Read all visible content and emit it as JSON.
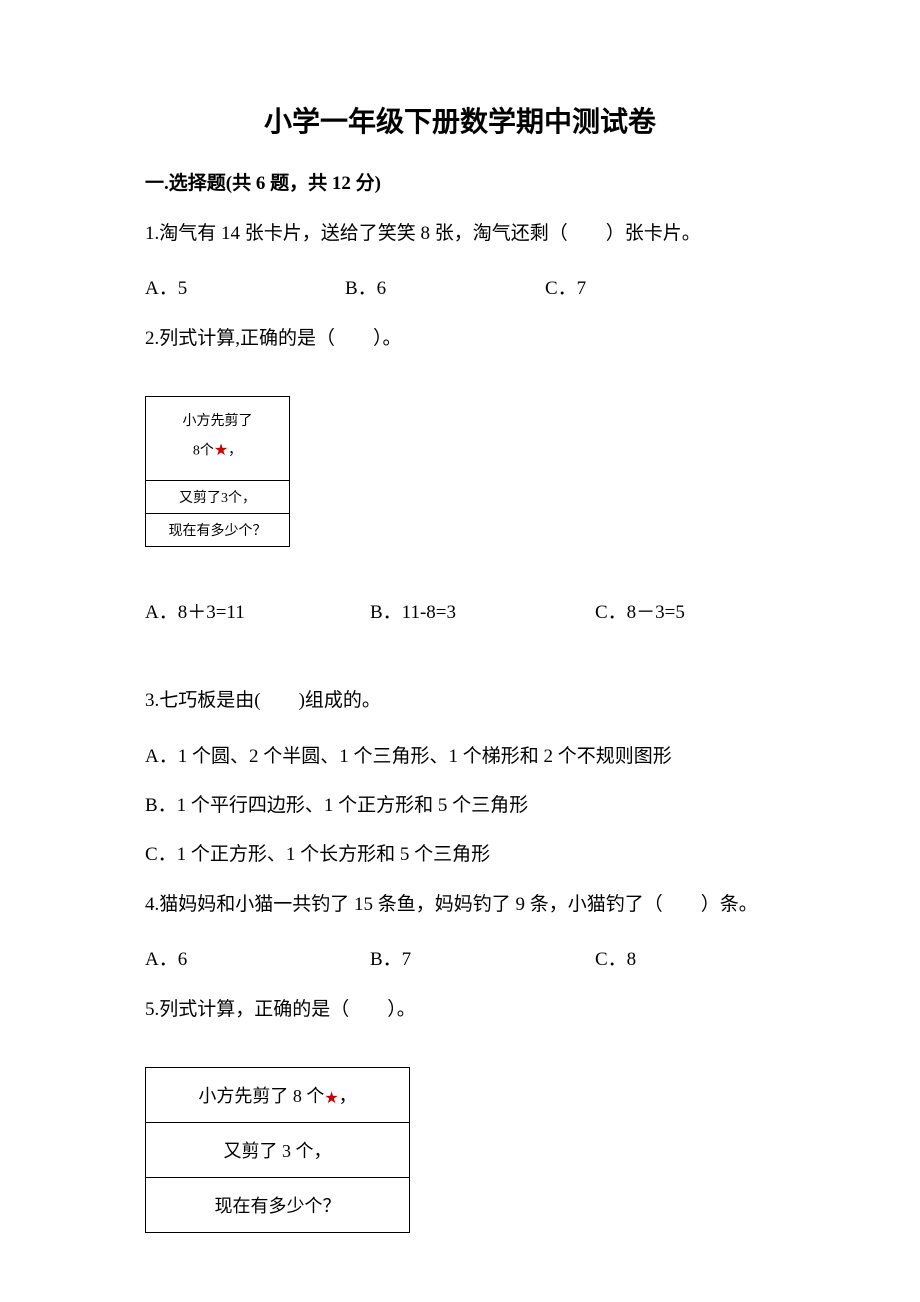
{
  "title": "小学一年级下册数学期中测试卷",
  "section1": {
    "header": "一.选择题(共 6 题，共 12 分)"
  },
  "q1": {
    "text": "1.淘气有 14 张卡片，送给了笑笑 8 张，淘气还剩（　　）张卡片。",
    "a": "A．5",
    "b": "B．6",
    "c": "C．7"
  },
  "q2": {
    "text": "2.列式计算,正确的是（　　）。",
    "box_r1a": "小方先剪了",
    "box_r1b": "8个",
    "box_r1c": "，",
    "box_r2": "又剪了3个，",
    "box_r3": "现在有多少个？",
    "a": "A．8＋3=11",
    "b": "B．11-8=3",
    "c": "C．8－3=5"
  },
  "q3": {
    "text": "3.七巧板是由(　　)组成的。",
    "a": "A．1 个圆、2 个半圆、1 个三角形、1 个梯形和 2 个不规则图形",
    "b": "B．1 个平行四边形、1 个正方形和 5 个三角形",
    "c": "C．1 个正方形、1 个长方形和 5 个三角形"
  },
  "q4": {
    "text": "4.猫妈妈和小猫一共钓了 15 条鱼，妈妈钓了 9 条，小猫钓了（　　）条。",
    "a": "A．6",
    "b": "B．7",
    "c": "C．8"
  },
  "q5": {
    "text": "5.列式计算，正确的是（　　）。",
    "box_r1a": "小方先剪了 8 个",
    "box_r1b": "，",
    "box_r2": "又剪了 3 个，",
    "box_r3": "现在有多少个？"
  },
  "colors": {
    "text": "#000000",
    "background": "#ffffff",
    "border": "#000000",
    "star": "#cc0000"
  }
}
